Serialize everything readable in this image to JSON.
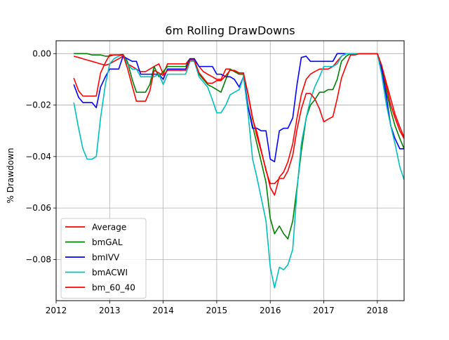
{
  "chart_data": {
    "type": "line",
    "title": "6m Rolling DrawDowns",
    "xlabel": "",
    "ylabel": "% Drawdown",
    "xlim": [
      2012.0,
      2018.5
    ],
    "ylim": [
      -0.096,
      0.005
    ],
    "x_ticks": [
      {
        "value": 2012,
        "label": "2012"
      },
      {
        "value": 2013,
        "label": "2013"
      },
      {
        "value": 2014,
        "label": "2014"
      },
      {
        "value": 2015,
        "label": "2015"
      },
      {
        "value": 2016,
        "label": "2016"
      },
      {
        "value": 2017,
        "label": "2017"
      },
      {
        "value": 2018,
        "label": "2018"
      }
    ],
    "y_ticks": [
      {
        "value": 0.0,
        "label": "0.00"
      },
      {
        "value": -0.02,
        "label": "−0.02"
      },
      {
        "value": -0.04,
        "label": "−0.04"
      },
      {
        "value": -0.06,
        "label": "−0.06"
      },
      {
        "value": -0.08,
        "label": "−0.08"
      }
    ],
    "grid": true,
    "legend_position": "lower-left",
    "x": [
      2012.33,
      2012.42,
      2012.5,
      2012.58,
      2012.67,
      2012.75,
      2012.83,
      2012.92,
      2013.0,
      2013.08,
      2013.17,
      2013.25,
      2013.33,
      2013.42,
      2013.5,
      2013.58,
      2013.67,
      2013.75,
      2013.83,
      2013.92,
      2014.0,
      2014.08,
      2014.17,
      2014.25,
      2014.33,
      2014.42,
      2014.5,
      2014.58,
      2014.67,
      2014.75,
      2014.83,
      2014.92,
      2015.0,
      2015.08,
      2015.17,
      2015.25,
      2015.33,
      2015.42,
      2015.5,
      2015.58,
      2015.67,
      2015.75,
      2015.83,
      2015.92,
      2016.0,
      2016.08,
      2016.17,
      2016.25,
      2016.33,
      2016.42,
      2016.5,
      2016.58,
      2016.67,
      2016.75,
      2016.83,
      2016.92,
      2017.0,
      2017.08,
      2017.17,
      2017.25,
      2017.33,
      2017.42,
      2017.5,
      2017.58,
      2017.67,
      2017.75,
      2017.83,
      2017.92,
      2018.0,
      2018.08,
      2018.17,
      2018.25,
      2018.33,
      2018.42,
      2018.5
    ],
    "series": [
      {
        "name": "Average",
        "color": "#ff0000",
        "values": [
          -0.001,
          -0.0015,
          -0.002,
          -0.0025,
          -0.003,
          -0.0035,
          -0.004,
          -0.0045,
          -0.004,
          -0.003,
          -0.002,
          -0.001,
          -0.004,
          -0.005,
          -0.006,
          -0.007,
          -0.007,
          -0.006,
          -0.005,
          -0.004,
          -0.008,
          -0.004,
          -0.004,
          -0.004,
          -0.004,
          -0.004,
          -0.002,
          -0.002,
          -0.005,
          -0.007,
          -0.008,
          -0.009,
          -0.01,
          -0.01,
          -0.006,
          -0.006,
          -0.007,
          -0.008,
          -0.008,
          -0.015,
          -0.025,
          -0.032,
          -0.038,
          -0.045,
          -0.052,
          -0.055,
          -0.048,
          -0.046,
          -0.042,
          -0.035,
          -0.025,
          -0.016,
          -0.01,
          -0.008,
          -0.007,
          -0.006,
          -0.006,
          -0.006,
          -0.005,
          -0.003,
          -0.001,
          0.0,
          0.0,
          0.0,
          0.0,
          0.0,
          0.0,
          0.0,
          0.0,
          -0.005,
          -0.013,
          -0.02,
          -0.025,
          -0.03,
          -0.033
        ]
      },
      {
        "name": "bmGAL",
        "color": "#008000",
        "values": [
          0.0,
          0.0,
          0.0,
          0.0,
          -0.0005,
          -0.0005,
          -0.0005,
          -0.001,
          -0.001,
          -0.0005,
          -0.0005,
          -0.0003,
          -0.003,
          -0.01,
          -0.015,
          -0.015,
          -0.015,
          -0.012,
          -0.005,
          -0.009,
          -0.007,
          -0.005,
          -0.005,
          -0.005,
          -0.005,
          -0.005,
          -0.002,
          -0.002,
          -0.008,
          -0.01,
          -0.012,
          -0.013,
          -0.014,
          -0.015,
          -0.01,
          -0.006,
          -0.007,
          -0.008,
          -0.008,
          -0.02,
          -0.028,
          -0.035,
          -0.042,
          -0.05,
          -0.064,
          -0.07,
          -0.067,
          -0.07,
          -0.072,
          -0.065,
          -0.052,
          -0.038,
          -0.025,
          -0.02,
          -0.018,
          -0.015,
          -0.015,
          -0.014,
          -0.014,
          -0.01,
          -0.003,
          -0.001,
          0.0,
          0.0,
          0.0,
          0.0,
          0.0,
          0.0,
          0.0,
          -0.006,
          -0.015,
          -0.022,
          -0.028,
          -0.033,
          -0.037
        ]
      },
      {
        "name": "bmIVV",
        "color": "#0000ff",
        "values": [
          -0.012,
          -0.017,
          -0.019,
          -0.019,
          -0.019,
          -0.021,
          -0.013,
          -0.009,
          -0.006,
          -0.006,
          -0.006,
          -0.001,
          -0.002,
          -0.003,
          -0.003,
          -0.008,
          -0.008,
          -0.008,
          -0.008,
          -0.008,
          -0.01,
          -0.006,
          -0.006,
          -0.006,
          -0.006,
          -0.006,
          -0.002,
          -0.002,
          -0.005,
          -0.005,
          -0.005,
          -0.005,
          -0.008,
          -0.008,
          -0.009,
          -0.009,
          -0.01,
          -0.013,
          -0.009,
          -0.02,
          -0.029,
          -0.029,
          -0.03,
          -0.03,
          -0.041,
          -0.042,
          -0.03,
          -0.029,
          -0.029,
          -0.025,
          -0.012,
          -0.0015,
          -0.001,
          -0.003,
          -0.003,
          -0.003,
          -0.003,
          -0.003,
          -0.003,
          0.0,
          0.0,
          0.0,
          0.0,
          0.0,
          0.0,
          0.0,
          0.0,
          0.0,
          0.0,
          -0.006,
          -0.017,
          -0.028,
          -0.033,
          -0.037,
          -0.037
        ]
      },
      {
        "name": "bmACWI",
        "color": "#00bfbf",
        "values": [
          -0.019,
          -0.029,
          -0.037,
          -0.041,
          -0.041,
          -0.04,
          -0.025,
          -0.012,
          -0.004,
          -0.002,
          -0.001,
          -0.0005,
          -0.004,
          -0.006,
          -0.006,
          -0.009,
          -0.009,
          -0.009,
          -0.009,
          -0.008,
          -0.012,
          -0.008,
          -0.008,
          -0.008,
          -0.008,
          -0.008,
          -0.003,
          -0.003,
          -0.009,
          -0.011,
          -0.013,
          -0.018,
          -0.023,
          -0.023,
          -0.02,
          -0.016,
          -0.015,
          -0.014,
          -0.009,
          -0.022,
          -0.041,
          -0.048,
          -0.056,
          -0.065,
          -0.083,
          -0.091,
          -0.083,
          -0.084,
          -0.082,
          -0.076,
          -0.053,
          -0.035,
          -0.025,
          -0.018,
          -0.013,
          -0.009,
          -0.005,
          -0.005,
          -0.005,
          -0.004,
          -0.001,
          0.0,
          0.0,
          0.0,
          0.0,
          0.0,
          0.0,
          0.0,
          0.0,
          -0.008,
          -0.02,
          -0.028,
          -0.035,
          -0.044,
          -0.049
        ]
      },
      {
        "name": "bm_60_40",
        "color": "#ff0000",
        "values": [
          -0.0095,
          -0.0145,
          -0.0165,
          -0.0165,
          -0.0165,
          -0.0165,
          -0.0075,
          -0.0035,
          -0.0005,
          -0.0005,
          -0.0005,
          -0.0005,
          -0.0055,
          -0.0125,
          -0.0185,
          -0.0185,
          -0.0185,
          -0.0145,
          -0.0065,
          -0.0075,
          -0.0085,
          -0.0065,
          -0.0065,
          -0.0065,
          -0.0065,
          -0.0065,
          -0.0025,
          -0.0025,
          -0.0075,
          -0.0095,
          -0.0115,
          -0.0115,
          -0.0105,
          -0.0105,
          -0.0085,
          -0.0065,
          -0.0065,
          -0.0075,
          -0.0075,
          -0.0155,
          -0.0255,
          -0.0305,
          -0.0375,
          -0.0455,
          -0.0505,
          -0.0505,
          -0.0485,
          -0.0485,
          -0.0455,
          -0.0395,
          -0.0295,
          -0.0215,
          -0.0155,
          -0.0155,
          -0.0175,
          -0.0215,
          -0.0265,
          -0.0255,
          -0.0245,
          -0.0175,
          -0.0095,
          -0.0045,
          -0.0005,
          -0.0005,
          0.0,
          0.0,
          0.0,
          0.0,
          0.0,
          -0.0045,
          -0.0115,
          -0.0175,
          -0.0235,
          -0.0285,
          -0.0325
        ]
      }
    ]
  }
}
